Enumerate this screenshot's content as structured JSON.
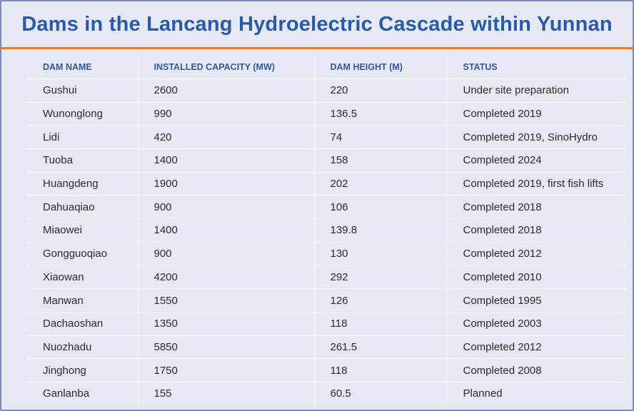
{
  "title": "Dams in the Lancang Hydroelectric Cascade within Yunnan",
  "columns": [
    "DAM NAME",
    "INSTALLED CAPACITY (MW)",
    "DAM HEIGHT (M)",
    "STATUS"
  ],
  "rows": [
    [
      "Gushui",
      "2600",
      "220",
      "Under site preparation"
    ],
    [
      "Wunonglong",
      "990",
      "136.5",
      "Completed 2019"
    ],
    [
      "Lidi",
      "420",
      "74",
      "Completed 2019, SinoHydro"
    ],
    [
      "Tuoba",
      "1400",
      "158",
      "Completed 2024"
    ],
    [
      "Huangdeng",
      "1900",
      "202",
      "Completed 2019, first fish lifts"
    ],
    [
      "Dahuaqiao",
      "900",
      "106",
      "Completed 2018"
    ],
    [
      "Miaowei",
      "1400",
      "139.8",
      "Completed 2018"
    ],
    [
      "Gongguoqiao",
      "900",
      "130",
      "Completed 2012"
    ],
    [
      "Xiaowan",
      "4200",
      "292",
      "Completed 2010"
    ],
    [
      "Manwan",
      "1550",
      "126",
      "Completed 1995"
    ],
    [
      "Dachaoshan",
      "1350",
      "118",
      "Completed 2003"
    ],
    [
      "Nuozhadu",
      "5850",
      "261.5",
      "Completed 2012"
    ],
    [
      "Jinghong",
      "1750",
      "118",
      "Completed 2008"
    ],
    [
      "Ganlanba",
      "155",
      "60.5",
      "Planned"
    ]
  ],
  "colors": {
    "background": "#e6e9f4",
    "title": "#2a5aa6",
    "accent_rule": "#ea7a24",
    "border": "#7c89b8",
    "cell_text": "#2b2b2b"
  }
}
